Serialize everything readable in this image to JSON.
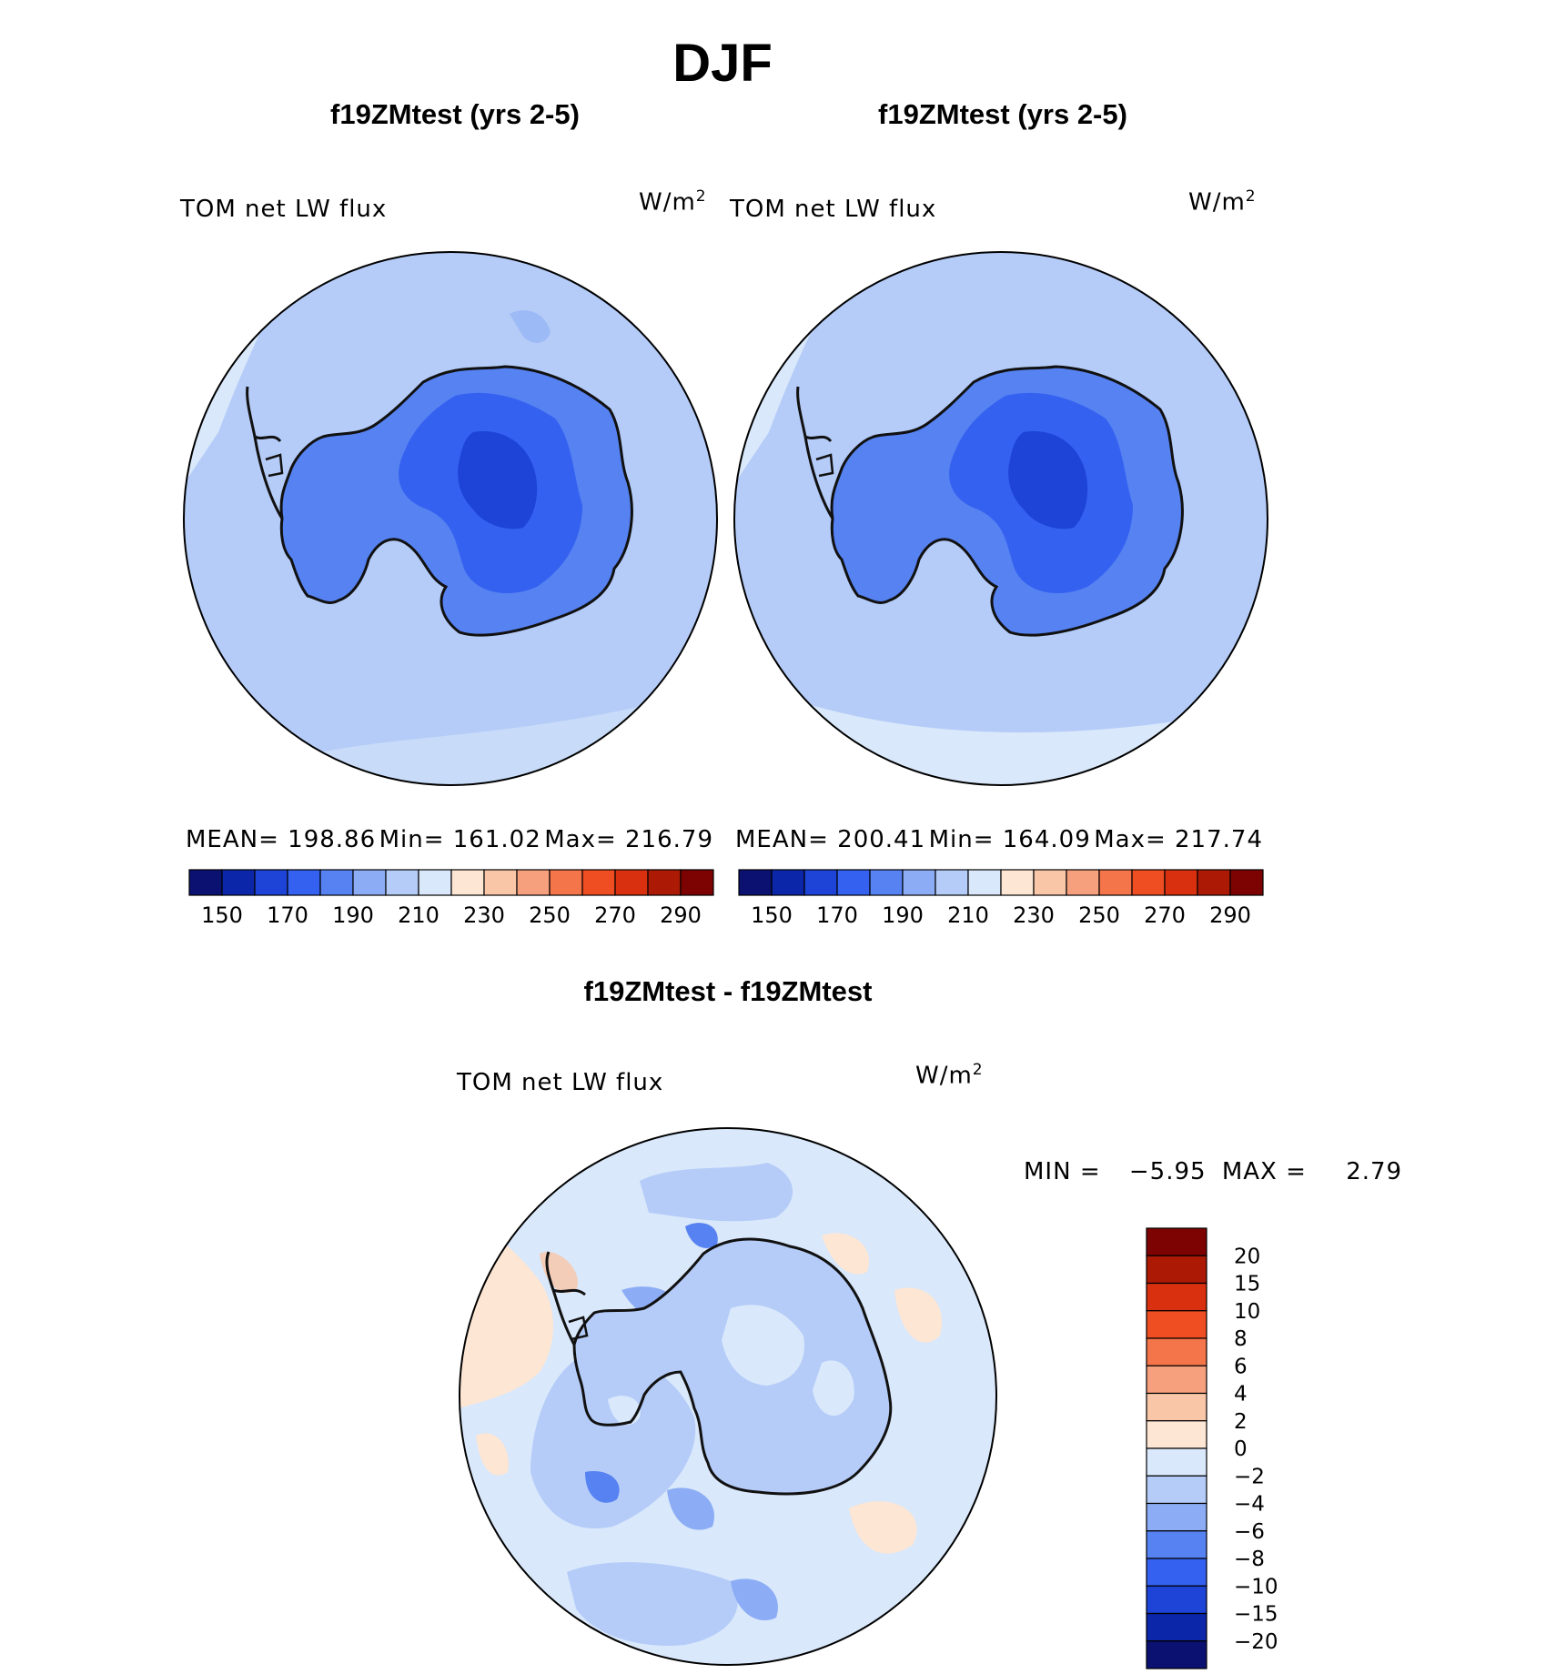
{
  "figure": {
    "title": "DJF"
  },
  "panels": [
    {
      "title": "f19ZMtest (yrs 2-5)",
      "variable": "TOM net LW flux",
      "units": "W/m",
      "units_sup": "2",
      "stats": {
        "mean": "MEAN= 198.86",
        "min": "Min= 161.02",
        "max": "Max= 216.79"
      }
    },
    {
      "title": "f19ZMtest (yrs 2-5)",
      "variable": "TOM net LW flux",
      "units": "W/m",
      "units_sup": "2",
      "stats": {
        "mean": "MEAN= 200.41",
        "min": "Min= 164.09",
        "max": "Max= 217.74"
      }
    }
  ],
  "diff_panel": {
    "title": "f19ZMtest - f19ZMtest",
    "variable": "TOM net LW flux",
    "units": "W/m",
    "units_sup": "2",
    "min_label": "MIN =",
    "min_value": "−5.95",
    "max_label": "MAX =",
    "max_value": "2.79"
  },
  "chart_data": [
    {
      "type": "map",
      "projection": "south polar stereographic",
      "colorbar": {
        "colors": [
          "#0a1170",
          "#0b26a8",
          "#1d44d6",
          "#3461f0",
          "#5682f2",
          "#8cadf5",
          "#b5ccf8",
          "#d9e8fb",
          "#fde6d4",
          "#f9c6a8",
          "#f6a07e",
          "#f5754a",
          "#ef4d22",
          "#d9300f",
          "#ac1a05",
          "#7d0303"
        ],
        "tick_labels": [
          "150",
          "170",
          "190",
          "210",
          "230",
          "250",
          "270",
          "290"
        ]
      }
    },
    {
      "type": "map",
      "projection": "south polar stereographic",
      "colorbar": {
        "colors": [
          "#0a1170",
          "#0b26a8",
          "#1d44d6",
          "#3461f0",
          "#5682f2",
          "#8cadf5",
          "#b5ccf8",
          "#d9e8fb",
          "#fde6d4",
          "#f9c6a8",
          "#f6a07e",
          "#f5754a",
          "#ef4d22",
          "#d9300f",
          "#ac1a05",
          "#7d0303"
        ],
        "tick_labels": [
          "150",
          "170",
          "190",
          "210",
          "230",
          "250",
          "270",
          "290"
        ]
      }
    },
    {
      "type": "map",
      "projection": "south polar stereographic",
      "colorbar": {
        "colors": [
          "#7d0303",
          "#ac1a05",
          "#d9300f",
          "#ef4d22",
          "#f5754a",
          "#f6a07e",
          "#f9c6a8",
          "#fde6d4",
          "#d9e8fb",
          "#b5ccf8",
          "#8cadf5",
          "#5682f2",
          "#3461f0",
          "#1d44d6",
          "#0b26a8",
          "#0a1170"
        ],
        "levels": [
          "20",
          "15",
          "10",
          "8",
          "6",
          "4",
          "2",
          "0",
          "−2",
          "−4",
          "−6",
          "−8",
          "−10",
          "−15",
          "−20"
        ]
      }
    }
  ],
  "colors": {
    "land_contour": "#111111",
    "ocean_fill": "#b5ccf8",
    "ocean_light": "#d9e8fb",
    "diff_base": "#d9e8fb"
  }
}
